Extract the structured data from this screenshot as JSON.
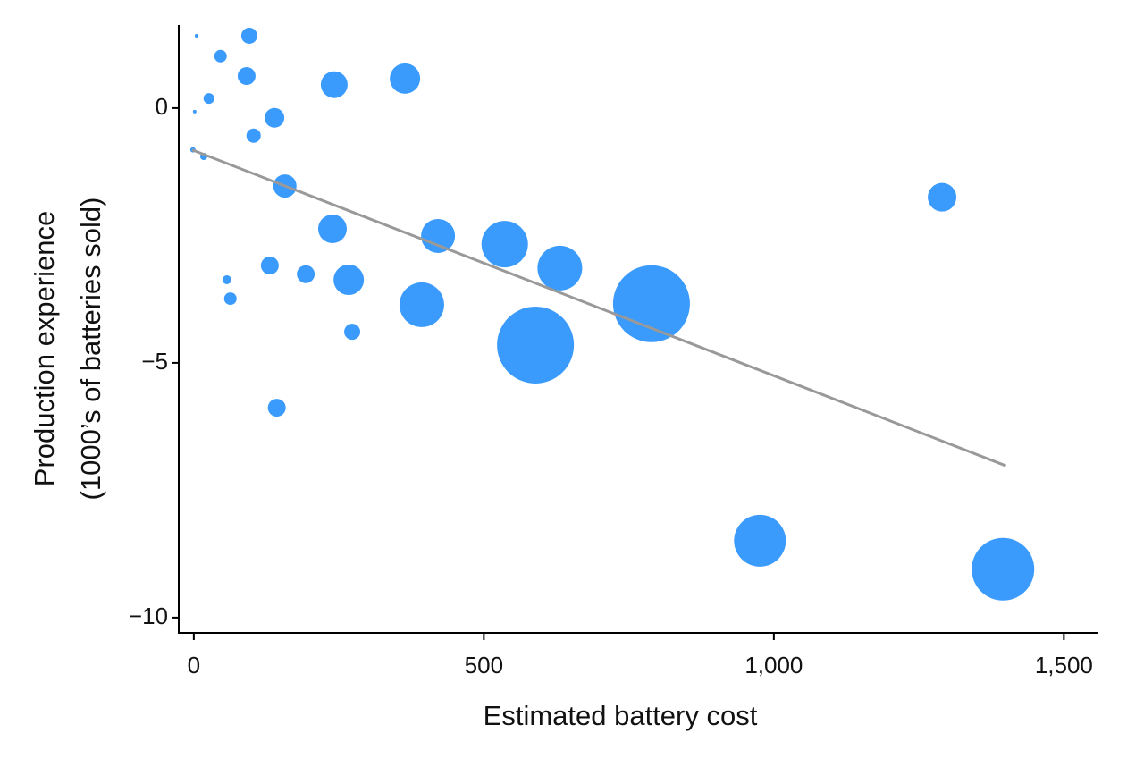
{
  "chart_data": {
    "type": "scatter",
    "x_label": "Estimated battery cost",
    "y_label": [
      "Production experience",
      "(1000’s of batteries sold)"
    ],
    "color": "#3a9bfc",
    "x": [
      4.6,
      95.6,
      46,
      91,
      242,
      364,
      26,
      1.5,
      139,
      103,
      -1.5,
      17,
      157,
      1290,
      239,
      421,
      536,
      631,
      131,
      193,
      267,
      57,
      63,
      789,
      393,
      273,
      589,
      143,
      976,
      1395
    ],
    "values": [
      1.42,
      1.42,
      1.02,
      0.63,
      0.46,
      0.58,
      0.19,
      -0.07,
      -0.19,
      -0.54,
      -0.82,
      -0.95,
      -1.53,
      -1.75,
      -2.37,
      -2.51,
      -2.67,
      -3.14,
      -3.09,
      -3.26,
      -3.37,
      -3.37,
      -3.74,
      -3.84,
      -3.86,
      -4.39,
      -4.65,
      -5.88,
      -8.49,
      -9.05
    ],
    "sizes": [
      2,
      9,
      7,
      10,
      15,
      17,
      6,
      2,
      11,
      8,
      3,
      4,
      13,
      16,
      16,
      19,
      26,
      25,
      10,
      10,
      17,
      5,
      7,
      43,
      25,
      9,
      43,
      10,
      29,
      35
    ],
    "trend_line": {
      "color": "#999999",
      "x": [
        -3,
        1400
      ],
      "values": [
        -0.82,
        -7.02
      ]
    },
    "xlim": [
      -26,
      1558
    ],
    "ylim": [
      -10.3,
      1.63
    ],
    "xticks": [
      0,
      500,
      {
        "value": 1000,
        "label": "1,000"
      },
      {
        "value": 1500,
        "label": "1,500"
      }
    ],
    "yticks": [
      {
        "value": -10,
        "label": "−10"
      },
      {
        "value": -5,
        "label": "−5"
      },
      0
    ]
  }
}
